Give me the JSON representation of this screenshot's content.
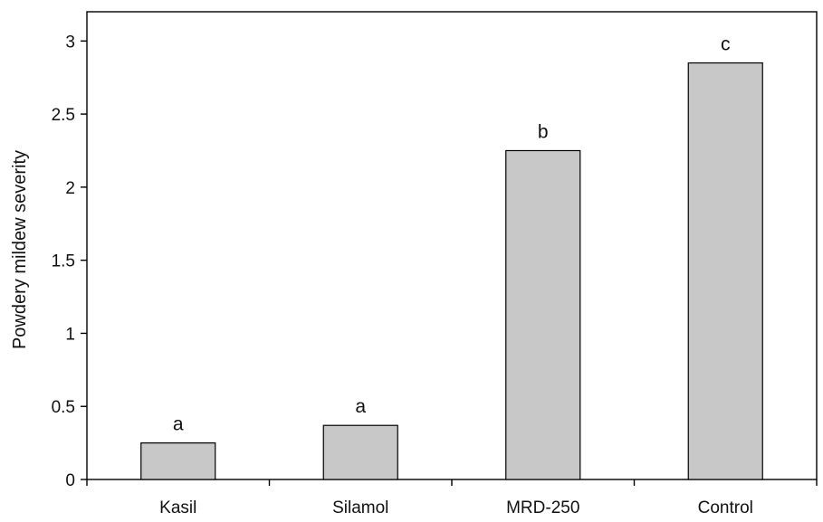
{
  "chart_data": {
    "type": "bar",
    "categories": [
      "Kasil",
      "Silamol",
      "MRD-250",
      "Control"
    ],
    "values": [
      0.25,
      0.37,
      2.25,
      2.85
    ],
    "significance_letters": [
      "a",
      "a",
      "b",
      "c"
    ],
    "title": "",
    "xlabel": "",
    "ylabel": "Powdery mildew severity",
    "ylim": [
      0,
      3.2
    ],
    "yticks": [
      0,
      0.5,
      1,
      1.5,
      2,
      2.5,
      3
    ],
    "ytick_labels": [
      "0",
      "0.5",
      "1",
      "1.5",
      "2",
      "2.5",
      "3"
    ],
    "grid": false,
    "legend": "none",
    "bar_color": "#c8c8c8",
    "edge_color": "#000000"
  }
}
